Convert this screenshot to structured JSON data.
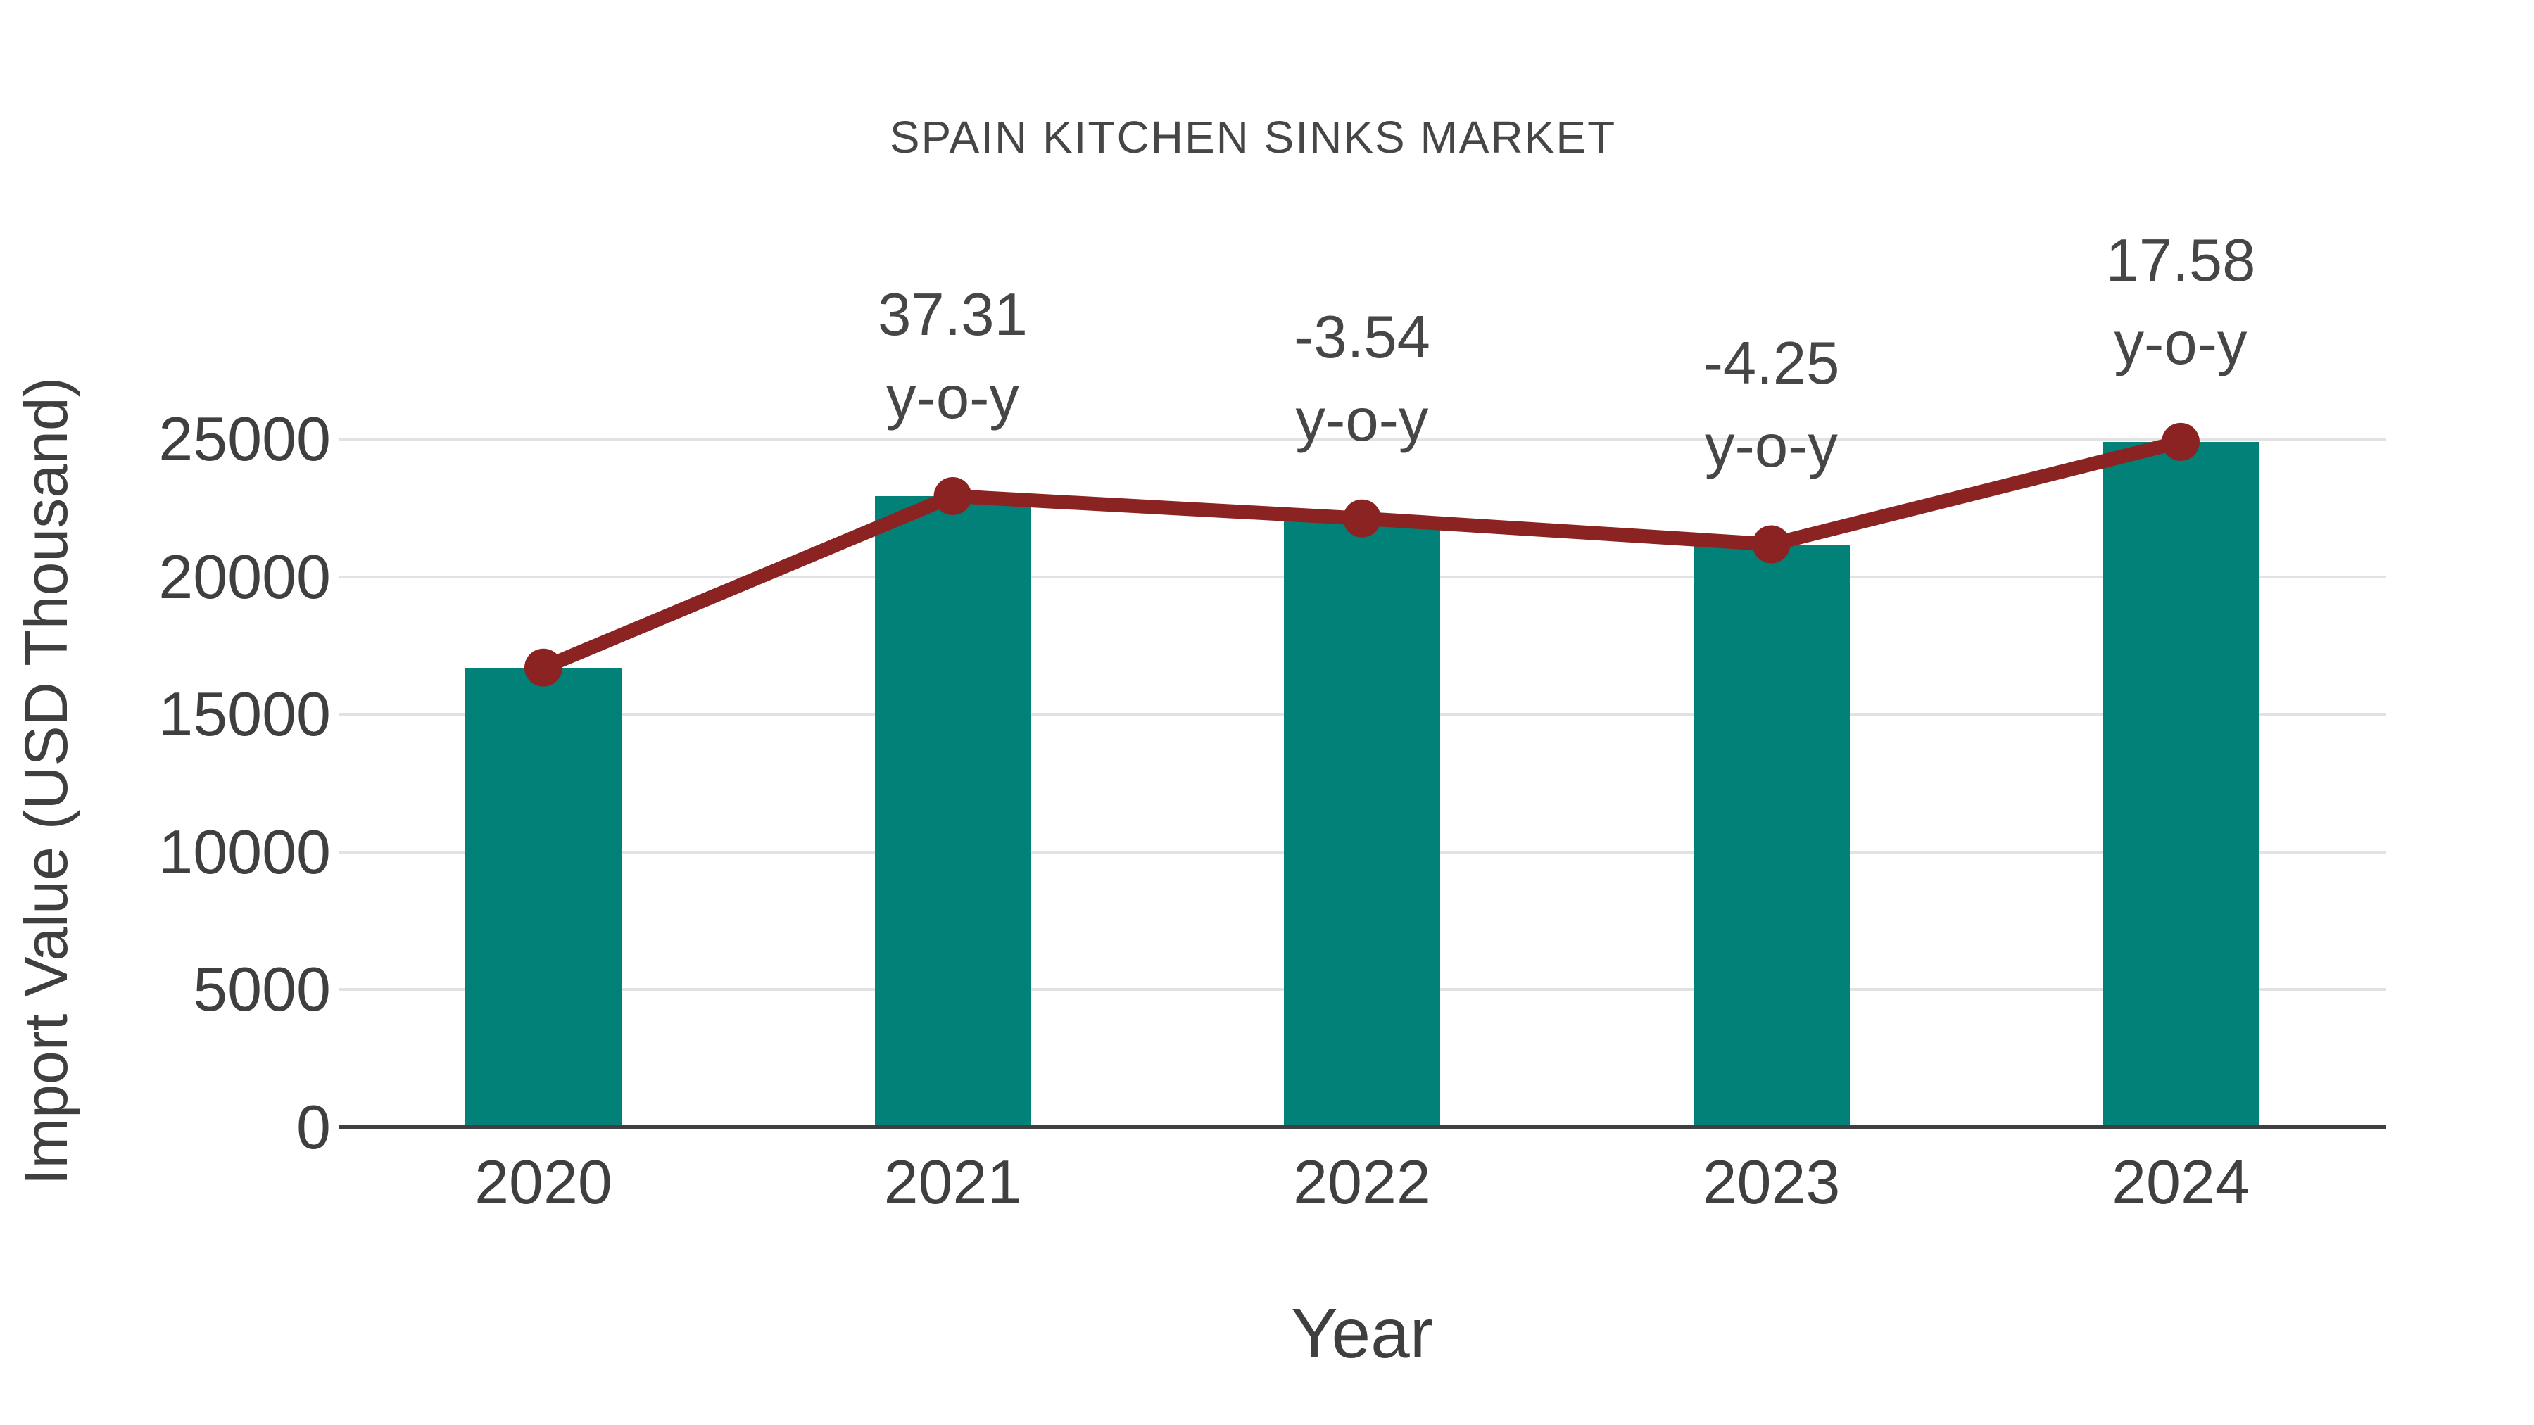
{
  "chart_data": {
    "type": "bar",
    "title": "SPAIN KITCHEN SINKS MARKET",
    "xlabel": "Year",
    "ylabel": "Import Value (USD Thousand)",
    "categories": [
      "2020",
      "2021",
      "2022",
      "2023",
      "2024"
    ],
    "series": [
      {
        "name": "Import Value (USD Thousand)",
        "type": "bar",
        "values": [
          16700,
          22930,
          22118,
          21178,
          24901
        ]
      }
    ],
    "overlay_line": {
      "name": "y-o-y trend markers",
      "follows_series": "Import Value (USD Thousand)",
      "marker": "circle"
    },
    "annotations": [
      {
        "category": "2021",
        "value": "37.31",
        "label": "y-o-y"
      },
      {
        "category": "2022",
        "value": "-3.54",
        "label": "y-o-y"
      },
      {
        "category": "2023",
        "value": "-4.25",
        "label": "y-o-y"
      },
      {
        "category": "2024",
        "value": "17.58",
        "label": "y-o-y"
      }
    ],
    "yticks": [
      0,
      5000,
      10000,
      15000,
      20000,
      25000
    ],
    "ylim": [
      0,
      26500
    ],
    "grid": true,
    "legend": false,
    "colors": {
      "bar": "#028179",
      "line": "#8B2323",
      "grid": "#E2E2E2",
      "axis": "#3F3F3F",
      "text": "#3F3F3F",
      "title": "#464646"
    }
  }
}
